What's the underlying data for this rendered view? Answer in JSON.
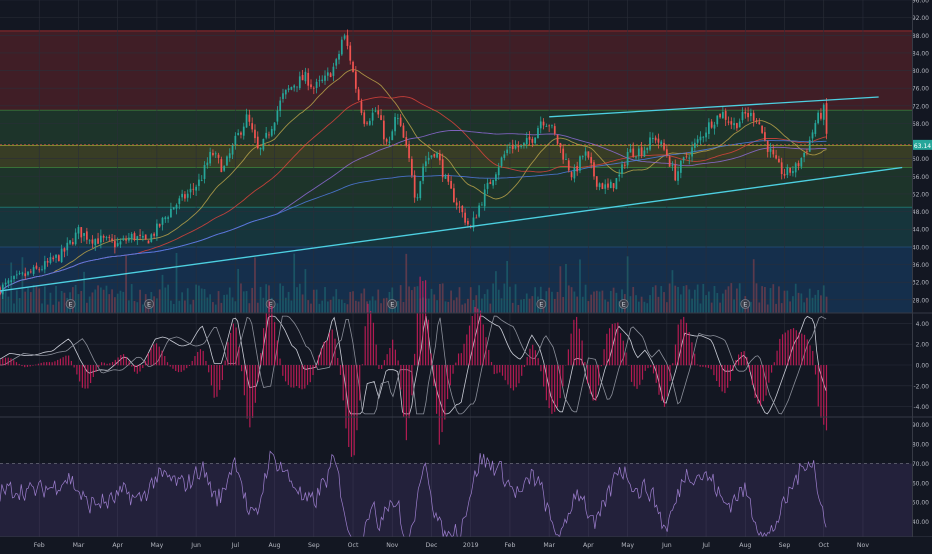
{
  "chart_data": [
    {
      "type": "candlestick",
      "title": "",
      "xlabel": "",
      "ylabel": "",
      "price_range": [
        25,
        96
      ],
      "y_ticks": [
        "96.00",
        "92.00",
        "88.00",
        "84.00",
        "80.00",
        "76.00",
        "72.00",
        "68.00",
        "64.00",
        "60.00",
        "56.00",
        "52.00",
        "48.00",
        "44.00",
        "40.00",
        "36.00",
        "32.00",
        "28.00"
      ],
      "last_price_label": "63.14",
      "x_ticks": [
        "Feb",
        "Mar",
        "Apr",
        "May",
        "Jun",
        "Jul",
        "Aug",
        "Sep",
        "Oct",
        "Nov",
        "Dec",
        "2019",
        "Feb",
        "Mar",
        "Apr",
        "May",
        "Jun",
        "Jul",
        "Aug",
        "Sep",
        "Oct",
        "Nov"
      ],
      "x_tick_months": [
        1,
        2,
        3,
        4,
        5,
        6,
        7,
        8,
        9,
        10,
        11,
        12,
        13,
        14,
        15,
        16,
        17,
        18,
        19,
        20,
        21,
        22
      ],
      "last_month_index": 21.1,
      "close_path": [
        {
          "m": 0.0,
          "p": 30.5
        },
        {
          "m": 0.5,
          "p": 33.0
        },
        {
          "m": 0.9,
          "p": 34.5
        },
        {
          "m": 1.2,
          "p": 36.0
        },
        {
          "m": 1.6,
          "p": 38.5
        },
        {
          "m": 2.0,
          "p": 43.5
        },
        {
          "m": 2.3,
          "p": 42.0
        },
        {
          "m": 2.6,
          "p": 41.5
        },
        {
          "m": 3.0,
          "p": 40.5
        },
        {
          "m": 3.4,
          "p": 42.5
        },
        {
          "m": 3.7,
          "p": 41.0
        },
        {
          "m": 4.0,
          "p": 44.0
        },
        {
          "m": 4.4,
          "p": 49.0
        },
        {
          "m": 4.8,
          "p": 52.0
        },
        {
          "m": 5.1,
          "p": 55.0
        },
        {
          "m": 5.4,
          "p": 61.5
        },
        {
          "m": 5.7,
          "p": 57.5
        },
        {
          "m": 6.0,
          "p": 64.0
        },
        {
          "m": 6.3,
          "p": 69.5
        },
        {
          "m": 6.6,
          "p": 61.0
        },
        {
          "m": 6.9,
          "p": 67.0
        },
        {
          "m": 7.2,
          "p": 74.0
        },
        {
          "m": 7.5,
          "p": 77.0
        },
        {
          "m": 7.8,
          "p": 78.5
        },
        {
          "m": 8.0,
          "p": 76.0
        },
        {
          "m": 8.3,
          "p": 78.0
        },
        {
          "m": 8.6,
          "p": 82.0
        },
        {
          "m": 8.75,
          "p": 88.5
        },
        {
          "m": 8.9,
          "p": 84.0
        },
        {
          "m": 9.1,
          "p": 75.0
        },
        {
          "m": 9.3,
          "p": 68.5
        },
        {
          "m": 9.6,
          "p": 71.0
        },
        {
          "m": 9.9,
          "p": 62.0
        },
        {
          "m": 10.1,
          "p": 70.0
        },
        {
          "m": 10.3,
          "p": 64.0
        },
        {
          "m": 10.5,
          "p": 57.0
        },
        {
          "m": 10.6,
          "p": 50.5
        },
        {
          "m": 10.8,
          "p": 59.0
        },
        {
          "m": 11.1,
          "p": 62.0
        },
        {
          "m": 11.4,
          "p": 54.0
        },
        {
          "m": 11.7,
          "p": 49.0
        },
        {
          "m": 12.0,
          "p": 44.0
        },
        {
          "m": 12.2,
          "p": 49.0
        },
        {
          "m": 12.4,
          "p": 53.0
        },
        {
          "m": 12.7,
          "p": 58.5
        },
        {
          "m": 13.0,
          "p": 63.0
        },
        {
          "m": 13.3,
          "p": 62.5
        },
        {
          "m": 13.6,
          "p": 65.0
        },
        {
          "m": 13.8,
          "p": 69.0
        },
        {
          "m": 14.0,
          "p": 68.0
        },
        {
          "m": 14.3,
          "p": 62.0
        },
        {
          "m": 14.6,
          "p": 56.0
        },
        {
          "m": 14.9,
          "p": 61.5
        },
        {
          "m": 15.2,
          "p": 55.0
        },
        {
          "m": 15.5,
          "p": 53.0
        },
        {
          "m": 15.8,
          "p": 56.0
        },
        {
          "m": 16.0,
          "p": 61.5
        },
        {
          "m": 16.4,
          "p": 62.0
        },
        {
          "m": 16.7,
          "p": 65.0
        },
        {
          "m": 17.0,
          "p": 61.0
        },
        {
          "m": 17.2,
          "p": 56.0
        },
        {
          "m": 17.5,
          "p": 60.5
        },
        {
          "m": 17.8,
          "p": 64.0
        },
        {
          "m": 18.1,
          "p": 68.0
        },
        {
          "m": 18.4,
          "p": 70.5
        },
        {
          "m": 18.7,
          "p": 67.5
        },
        {
          "m": 19.0,
          "p": 70.0
        },
        {
          "m": 19.3,
          "p": 69.5
        },
        {
          "m": 19.5,
          "p": 64.0
        },
        {
          "m": 19.8,
          "p": 58.5
        },
        {
          "m": 20.0,
          "p": 56.5
        },
        {
          "m": 20.3,
          "p": 58.0
        },
        {
          "m": 20.6,
          "p": 63.0
        },
        {
          "m": 20.8,
          "p": 68.5
        },
        {
          "m": 21.0,
          "p": 71.0
        },
        {
          "m": 21.1,
          "p": 63.1
        }
      ],
      "candles_per_month": 14,
      "moving_averages": [
        {
          "color": "#b8a24a",
          "period": 20
        },
        {
          "color": "#d9433c",
          "period": 50
        },
        {
          "color": "#8d6bd6",
          "period": 100
        },
        {
          "color": "#4f7be0",
          "period": 200
        }
      ],
      "zones": [
        {
          "from": 71,
          "to": 89,
          "color": "#e53935"
        },
        {
          "from": 63,
          "to": 71,
          "color": "#43a047"
        },
        {
          "from": 58,
          "to": 63,
          "color": "#c0ca33"
        },
        {
          "from": 49,
          "to": 58,
          "color": "#43a047"
        },
        {
          "from": 40,
          "to": 49,
          "color": "#26a69a"
        },
        {
          "from": 25,
          "to": 40,
          "color": "#1e88e5"
        }
      ],
      "trendlines": [
        {
          "from": {
            "m": 0.0,
            "p": 30.0
          },
          "to": {
            "m": 23.0,
            "p": 58.0
          },
          "color": "#4dd0e1"
        },
        {
          "from": {
            "m": 14.0,
            "p": 69.5
          },
          "to": {
            "m": 22.4,
            "p": 74.0
          },
          "color": "#4dd0e1"
        }
      ],
      "earnings_months": [
        1.8,
        3.8,
        6.9,
        10.0,
        13.8,
        15.9,
        19.0
      ],
      "earnings_label": "E",
      "up_color": "#26a69a",
      "down_color": "#ef5350"
    },
    {
      "type": "line",
      "title": "",
      "y_ticks": [
        "4.00",
        "2.00",
        "0.00",
        "-2.00",
        "-4.00"
      ],
      "y_range": [
        -5,
        5
      ],
      "histogram_color": "#e91e63",
      "series": [
        {
          "color": "#c9ccd6",
          "lag": 0
        },
        {
          "color": "#8a8e99",
          "lag": 0.35
        }
      ]
    },
    {
      "type": "line",
      "title": "",
      "y_ticks": [
        "90.00",
        "80.00",
        "70.00",
        "60.00",
        "50.00",
        "40.00"
      ],
      "y_range": [
        32,
        94
      ],
      "band": [
        30,
        70
      ],
      "band_color": "#7e57c2",
      "series_color": "#9e7fcf"
    }
  ]
}
